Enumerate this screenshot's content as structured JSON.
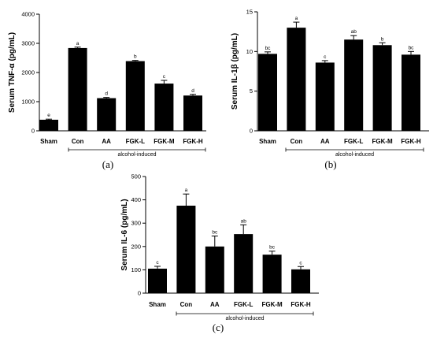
{
  "colors": {
    "bar": "#000000",
    "axis": "#000000",
    "background": "#ffffff"
  },
  "chart_data": [
    {
      "type": "bar",
      "panel_label": "(a)",
      "categories": [
        "Sham",
        "Con",
        "AA",
        "FGK-L",
        "FGK-M",
        "FGK-H"
      ],
      "values": [
        380,
        2840,
        1120,
        2390,
        1620,
        1210
      ],
      "errors": [
        20,
        30,
        25,
        25,
        110,
        40
      ],
      "significance": [
        "e",
        "a",
        "d",
        "b",
        "c",
        "d"
      ],
      "ylabel": "Serum TNF-α (pg/mL)",
      "ylim": [
        0,
        4000
      ],
      "yticks": [
        "0",
        "1000",
        "2000",
        "3000",
        "4000"
      ],
      "ytick_values": [
        0,
        1000,
        2000,
        3000,
        4000
      ],
      "group_label": "alcohol-induced",
      "grid": false
    },
    {
      "type": "bar",
      "panel_label": "(b)",
      "categories": [
        "Sham",
        "Con",
        "AA",
        "FGK-L",
        "FGK-M",
        "FGK-H"
      ],
      "values": [
        9.7,
        13.0,
        8.6,
        11.5,
        10.8,
        9.6
      ],
      "errors": [
        0.25,
        0.7,
        0.25,
        0.5,
        0.3,
        0.4
      ],
      "significance": [
        "bc",
        "a",
        "c",
        "ab",
        "b",
        "bc"
      ],
      "ylabel": "Serum IL-1β (pg/mL)",
      "ylim": [
        0,
        15
      ],
      "yticks": [
        "0",
        "5",
        "10",
        "15"
      ],
      "ytick_values": [
        0,
        5,
        10,
        15
      ],
      "group_label": "alcohol-induced",
      "grid": false
    },
    {
      "type": "bar",
      "panel_label": "(c)",
      "categories": [
        "Sham",
        "Con",
        "AA",
        "FGK-L",
        "FGK-M",
        "FGK-H"
      ],
      "values": [
        105,
        375,
        200,
        253,
        165,
        102
      ],
      "errors": [
        10,
        50,
        45,
        40,
        15,
        12
      ],
      "significance": [
        "c",
        "a",
        "bc",
        "ab",
        "bc",
        "c"
      ],
      "ylabel": "Serum IL-6 (pg/mL)",
      "ylim": [
        0,
        500
      ],
      "yticks": [
        "0",
        "100",
        "200",
        "300",
        "400",
        "500"
      ],
      "ytick_values": [
        0,
        100,
        200,
        300,
        400,
        500
      ],
      "group_label": "alcohol-induced",
      "grid": false
    }
  ]
}
